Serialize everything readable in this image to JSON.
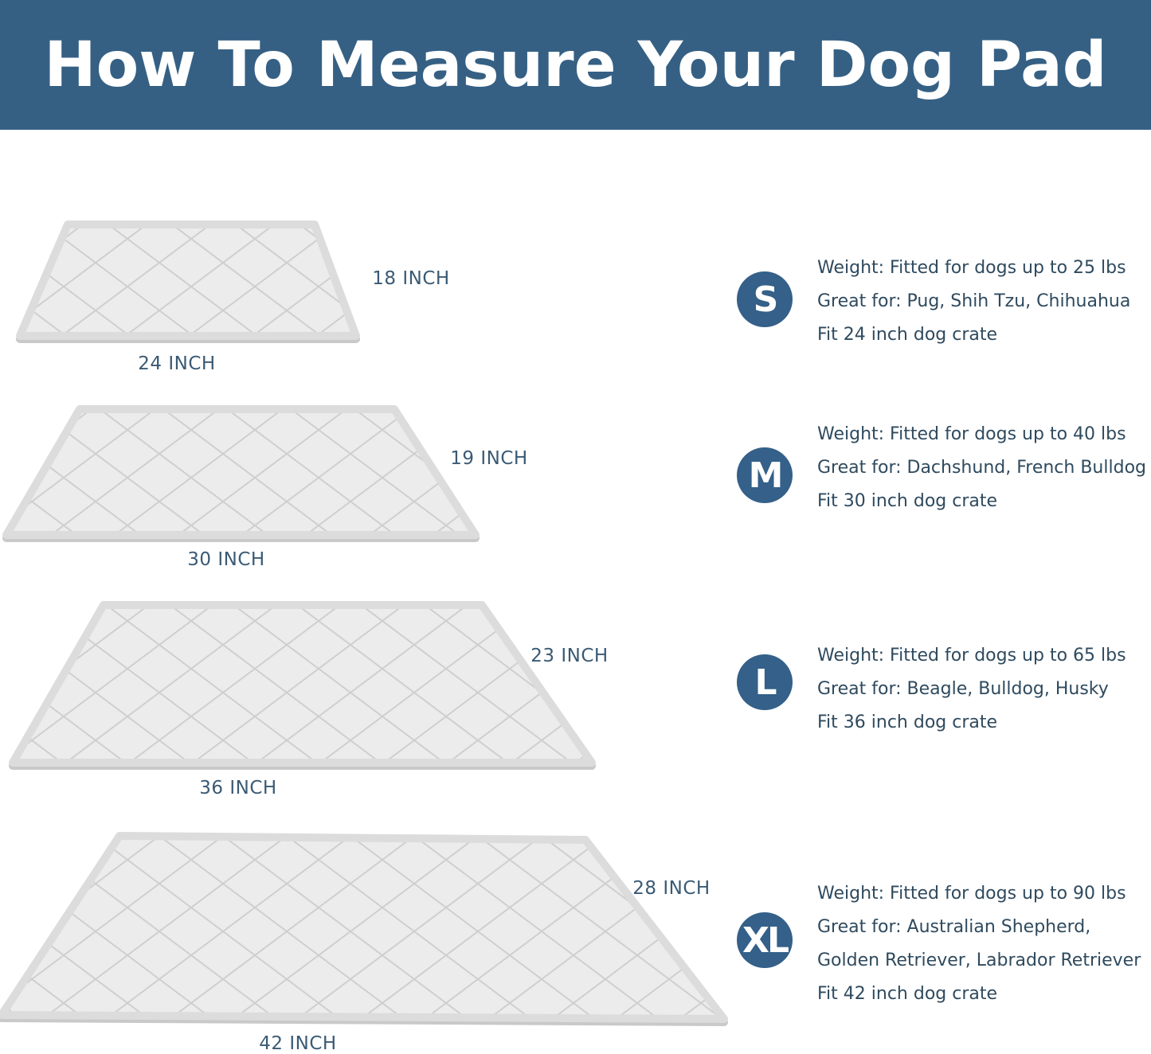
{
  "header": {
    "title": "How To Measure Your Dog Pad"
  },
  "colors": {
    "header_bg": "#356084",
    "badge": "#346089",
    "text": "#2f4a5e",
    "pad": "#ececec"
  },
  "sizes": [
    {
      "badge": "S",
      "depth": "18 INCH",
      "width": "24 INCH",
      "lines": [
        "Weight: Fitted for dogs up to 25 lbs",
        "Great for: Pug, Shih Tzu, Chihuahua",
        "Fit 24 inch dog crate"
      ]
    },
    {
      "badge": "M",
      "depth": "19 INCH",
      "width": "30 INCH",
      "lines": [
        "Weight: Fitted for dogs up to 40 lbs",
        "Great for: Dachshund, French Bulldog",
        "Fit 30 inch dog crate"
      ]
    },
    {
      "badge": "L",
      "depth": "23 INCH",
      "width": "36 INCH",
      "lines": [
        "Weight: Fitted for dogs up to 65 lbs",
        "Great for: Beagle, Bulldog, Husky",
        "Fit 36 inch dog crate"
      ]
    },
    {
      "badge": "XL",
      "depth": "28 INCH",
      "width": "42 INCH",
      "lines": [
        "Weight: Fitted for dogs up to 90 lbs",
        "Great for: Australian Shepherd,",
        "Golden Retriever, Labrador Retriever",
        "Fit 42 inch dog crate"
      ]
    }
  ]
}
